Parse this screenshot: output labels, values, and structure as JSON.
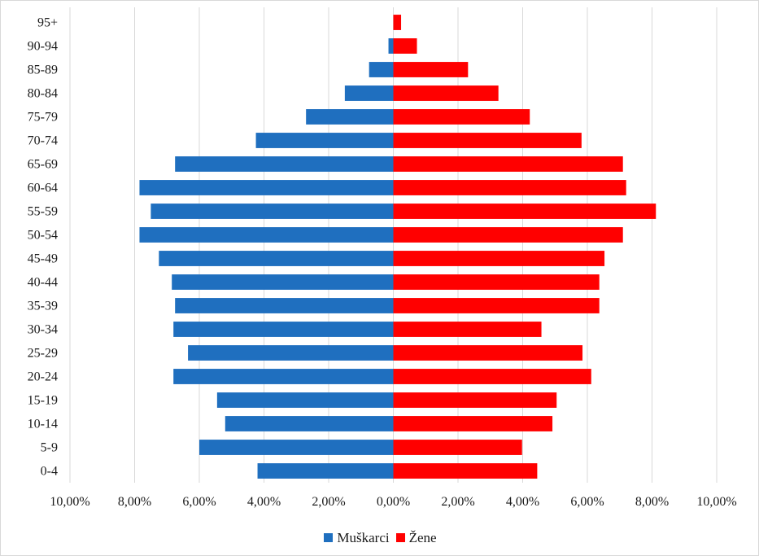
{
  "chart_data": {
    "type": "bar",
    "orientation": "horizontal",
    "title": "",
    "categories": [
      "0-4",
      "5-9",
      "10-14",
      "15-19",
      "20-24",
      "25-29",
      "30-34",
      "35-39",
      "40-44",
      "45-49",
      "50-54",
      "55-59",
      "60-64",
      "65-69",
      "70-74",
      "75-79",
      "80-84",
      "85-89",
      "90-94",
      "95+"
    ],
    "series": [
      {
        "name": "Muškarci",
        "color": "#1f6fbf",
        "values": [
          4.2,
          6.0,
          5.2,
          5.45,
          6.8,
          6.35,
          6.8,
          6.75,
          6.85,
          7.25,
          7.85,
          7.5,
          7.85,
          6.75,
          4.25,
          2.7,
          1.5,
          0.75,
          0.15,
          0.0
        ]
      },
      {
        "name": "Žene",
        "color": "#ff0000",
        "values": [
          4.45,
          3.98,
          4.92,
          5.05,
          6.12,
          5.85,
          4.58,
          6.37,
          6.37,
          6.53,
          7.1,
          8.12,
          7.2,
          7.1,
          5.82,
          4.22,
          3.25,
          2.31,
          0.73,
          0.24
        ]
      }
    ],
    "xlim": [
      -10,
      10
    ],
    "xticks": [
      -10,
      -8,
      -6,
      -4,
      -2,
      0,
      2,
      4,
      6,
      8,
      10
    ],
    "xtick_labels": [
      "10,00%",
      "8,00%",
      "6,00%",
      "4,00%",
      "2,00%",
      "0,00%",
      "2,00%",
      "4,00%",
      "6,00%",
      "8,00%",
      "10,00%"
    ],
    "xlabel": "",
    "ylabel": "",
    "grid": "vertical",
    "legend_position": "bottom"
  }
}
